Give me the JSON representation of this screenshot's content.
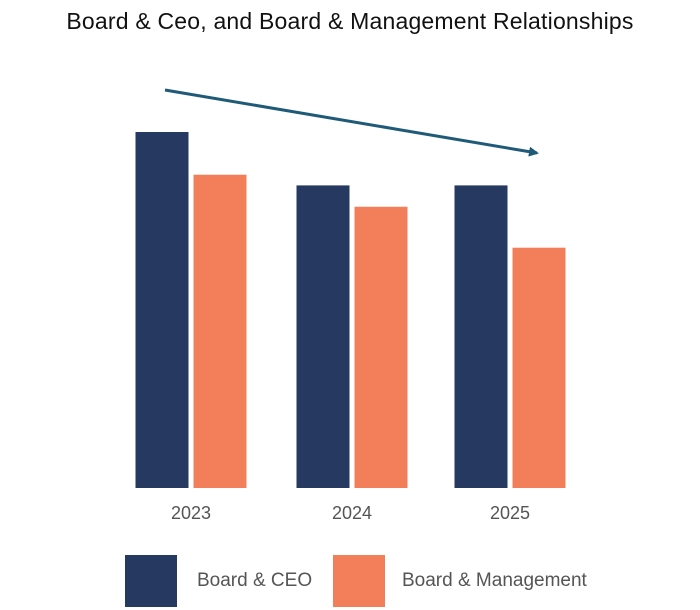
{
  "chart_data": {
    "type": "bar",
    "title": "Board & Ceo, and Board & Management Relationships",
    "xlabel": "",
    "ylabel": "",
    "categories": [
      "2023",
      "2024",
      "2025"
    ],
    "series": [
      {
        "name": "Board & CEO",
        "values": [
          100,
          85,
          85
        ],
        "color": "#263961"
      },
      {
        "name": "Board & Management",
        "values": [
          88,
          79,
          67.5
        ],
        "color": "#f37f5a"
      }
    ],
    "ylim": [
      0,
      100
    ],
    "grid": false,
    "legend_position": "bottom",
    "annotation": {
      "type": "trend-arrow",
      "direction": "down",
      "color": "#1f5a78"
    }
  }
}
